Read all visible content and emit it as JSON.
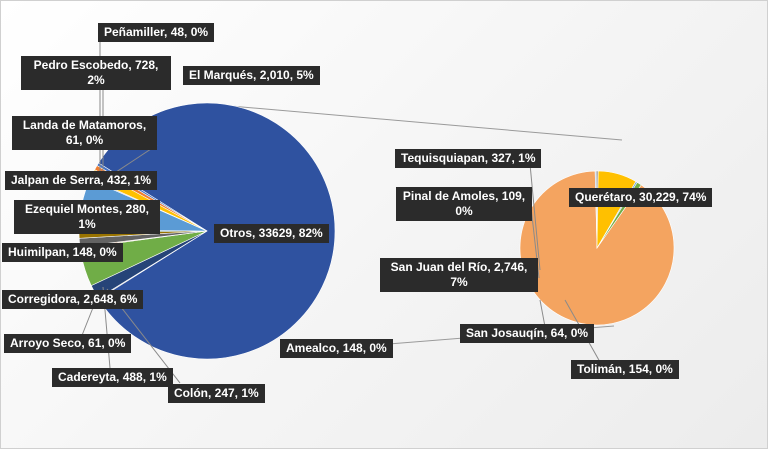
{
  "chart_data": {
    "type": "pie-of-pie",
    "title": "",
    "main_pie": {
      "slices": [
        {
          "name": "Otros",
          "value": 33629,
          "percent": "82%",
          "color": "#2f52a0"
        },
        {
          "name": "Peñamiller",
          "value": 48,
          "percent": "0%",
          "color": "#7f7f7f"
        },
        {
          "name": "Pedro Escobedo",
          "value": 728,
          "percent": "2%",
          "color": "#264478"
        },
        {
          "name": "El Marqués",
          "value": 2010,
          "percent": "5%",
          "color": "#70ad47"
        },
        {
          "name": "Landa de Matamoros",
          "value": 61,
          "percent": "0%",
          "color": "#9e480e"
        },
        {
          "name": "Jalpan de Serra",
          "value": 432,
          "percent": "1%",
          "color": "#636363"
        },
        {
          "name": "Ezequiel Montes",
          "value": 280,
          "percent": "1%",
          "color": "#997300"
        },
        {
          "name": "Huimilpan",
          "value": 148,
          "percent": "0%",
          "color": "#43682b"
        },
        {
          "name": "Corregidora",
          "value": 2648,
          "percent": "6%",
          "color": "#5b9bd5"
        },
        {
          "name": "Arroyo Seco",
          "value": 61,
          "percent": "0%",
          "color": "#a5a5a5"
        },
        {
          "name": "Cadereyta",
          "value": 488,
          "percent": "1%",
          "color": "#ffc000"
        },
        {
          "name": "Colón",
          "value": 247,
          "percent": "1%",
          "color": "#ed7d31"
        },
        {
          "name": "Amealco",
          "value": 148,
          "percent": "0%",
          "color": "#4472c4"
        }
      ]
    },
    "secondary_pie": {
      "slices": [
        {
          "name": "Querétaro",
          "value": 30229,
          "percent": "74%",
          "color": "#f4a460"
        },
        {
          "name": "San Josauqín",
          "value": 64,
          "percent": "0%",
          "color": "#4472c4"
        },
        {
          "name": "Tolimán",
          "value": 154,
          "percent": "0%",
          "color": "#a5a5a5"
        },
        {
          "name": "San Juan del Río",
          "value": 2746,
          "percent": "7%",
          "color": "#ffc000"
        },
        {
          "name": "Pinal de Amoles",
          "value": 109,
          "percent": "0%",
          "color": "#5b9bd5"
        },
        {
          "name": "Tequisquiapan",
          "value": 327,
          "percent": "1%",
          "color": "#70ad47"
        }
      ]
    }
  },
  "labels": {
    "penamiller": "Peñamiller, 48, 0%",
    "pedro_escobedo": "Pedro Escobedo, 728, 2%",
    "el_marques": "El Marqués, 2,010, 5%",
    "landa": "Landa de Matamoros, 61, 0%",
    "jalpan": "Jalpan de Serra, 432, 1%",
    "ezequiel": "Ezequiel Montes, 280, 1%",
    "huimilpan": "Huimilpan, 148, 0%",
    "otros": "Otros, 33629, 82%",
    "corregidora": "Corregidora, 2,648, 6%",
    "arroyo": "Arroyo Seco, 61, 0%",
    "cadereyta": "Cadereyta, 488, 1%",
    "colon": "Colón, 247, 1%",
    "amealco": "Amealco, 148, 0%",
    "tequisquiapan": "Tequisquiapan, 327, 1%",
    "pinal": "Pinal de Amoles, 109, 0%",
    "queretaro": "Querétaro, 30,229, 74%",
    "san_juan": "San Juan del Río, 2,746, 7%",
    "san_josauqin": "San Josauqín, 64, 0%",
    "toliman": "Tolimán, 154, 0%"
  }
}
